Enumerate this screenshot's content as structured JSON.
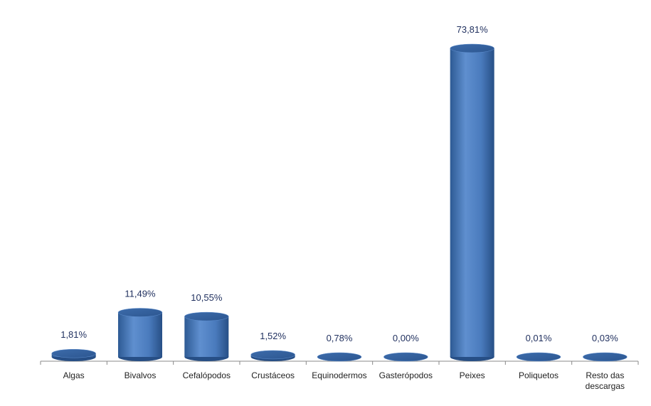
{
  "chart_data": {
    "type": "bar",
    "categories": [
      "Algas",
      "Bivalvos",
      "Cefalópodos",
      "Crustáceos",
      "Equinodermos",
      "Gasterópodos",
      "Peixes",
      "Poliquetos",
      "Resto das descargas"
    ],
    "values": [
      1.81,
      11.49,
      10.55,
      1.52,
      0.78,
      0.0,
      73.81,
      0.01,
      0.03
    ],
    "value_labels": [
      "1,81%",
      "11,49%",
      "10,55%",
      "1,52%",
      "0,78%",
      "0,00%",
      "73,81%",
      "0,01%",
      "0,03%"
    ],
    "color": "#4f81bd"
  }
}
